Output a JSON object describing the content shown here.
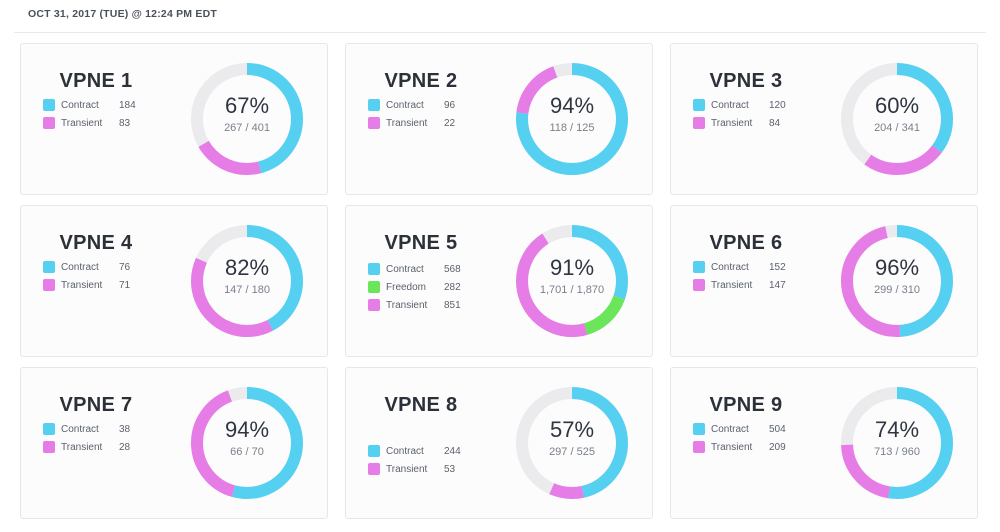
{
  "timestamp": "OCT 31, 2017 (TUE) @ 12:24 PM EDT",
  "colors": {
    "contract": "#55d0f0",
    "transient": "#e67ce6",
    "freedom": "#6be55a",
    "empty": "#ebebed"
  },
  "cards": [
    {
      "title": "VPNE 1",
      "percent": "67%",
      "ratio": "267 / 401",
      "total": 401,
      "segments": [
        {
          "label": "Contract",
          "value_text": "184",
          "value": 184,
          "color": "#55d0f0"
        },
        {
          "label": "Transient",
          "value_text": "83",
          "value": 83,
          "color": "#e67ce6"
        }
      ]
    },
    {
      "title": "VPNE 2",
      "percent": "94%",
      "ratio": "118 / 125",
      "total": 125,
      "segments": [
        {
          "label": "Contract",
          "value_text": "96",
          "value": 96,
          "color": "#55d0f0"
        },
        {
          "label": "Transient",
          "value_text": "22",
          "value": 22,
          "color": "#e67ce6"
        }
      ]
    },
    {
      "title": "VPNE 3",
      "percent": "60%",
      "ratio": "204 / 341",
      "total": 341,
      "segments": [
        {
          "label": "Contract",
          "value_text": "120",
          "value": 120,
          "color": "#55d0f0"
        },
        {
          "label": "Transient",
          "value_text": "84",
          "value": 84,
          "color": "#e67ce6"
        }
      ]
    },
    {
      "title": "VPNE 4",
      "percent": "82%",
      "ratio": "147 / 180",
      "total": 180,
      "segments": [
        {
          "label": "Contract",
          "value_text": "76",
          "value": 76,
          "color": "#55d0f0"
        },
        {
          "label": "Transient",
          "value_text": "71",
          "value": 71,
          "color": "#e67ce6"
        }
      ]
    },
    {
      "title": "VPNE 5",
      "percent": "91%",
      "ratio": "1,701 / 1,870",
      "total": 1870,
      "segments": [
        {
          "label": "Contract",
          "value_text": "568",
          "value": 568,
          "color": "#55d0f0"
        },
        {
          "label": "Freedom",
          "value_text": "282",
          "value": 282,
          "color": "#6be55a"
        },
        {
          "label": "Transient",
          "value_text": "851",
          "value": 851,
          "color": "#e67ce6"
        }
      ]
    },
    {
      "title": "VPNE 6",
      "percent": "96%",
      "ratio": "299 / 310",
      "total": 310,
      "segments": [
        {
          "label": "Contract",
          "value_text": "152",
          "value": 152,
          "color": "#55d0f0"
        },
        {
          "label": "Transient",
          "value_text": "147",
          "value": 147,
          "color": "#e67ce6"
        }
      ]
    },
    {
      "title": "VPNE 7",
      "percent": "94%",
      "ratio": "66 / 70",
      "total": 70,
      "segments": [
        {
          "label": "Contract",
          "value_text": "38",
          "value": 38,
          "color": "#55d0f0"
        },
        {
          "label": "Transient",
          "value_text": "28",
          "value": 28,
          "color": "#e67ce6"
        }
      ]
    },
    {
      "title": "VPNE 8",
      "percent": "57%",
      "ratio": "297 / 525",
      "total": 525,
      "segments": [
        {
          "label": "Contract",
          "value_text": "244",
          "value": 244,
          "color": "#55d0f0"
        },
        {
          "label": "Transient",
          "value_text": "53",
          "value": 53,
          "color": "#e67ce6"
        }
      ]
    },
    {
      "title": "VPNE 9",
      "percent": "74%",
      "ratio": "713 / 960",
      "total": 960,
      "segments": [
        {
          "label": "Contract",
          "value_text": "504",
          "value": 504,
          "color": "#55d0f0"
        },
        {
          "label": "Transient",
          "value_text": "209",
          "value": 209,
          "color": "#e67ce6"
        }
      ]
    }
  ]
}
